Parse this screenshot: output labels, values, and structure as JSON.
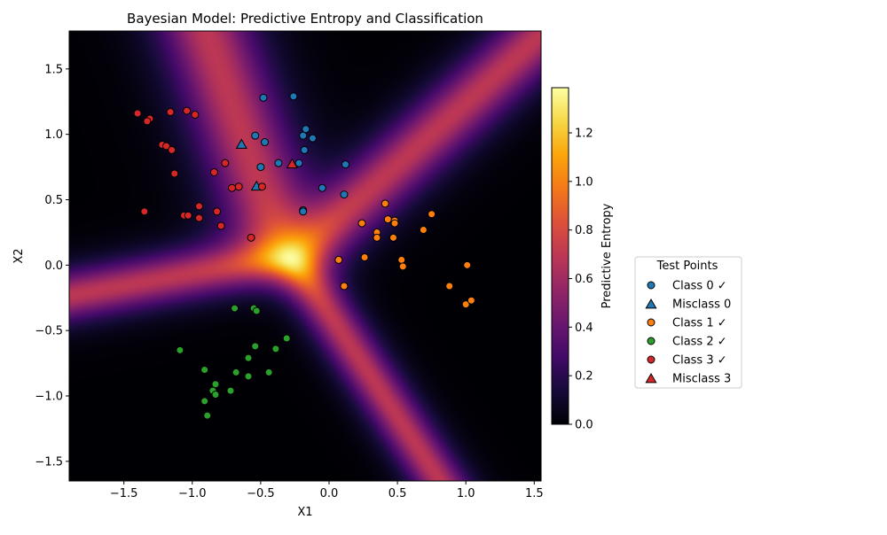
{
  "chart_data": {
    "type": "scatter",
    "title": "Bayesian Model: Predictive Entropy and Classification",
    "xlabel": "X1",
    "ylabel": "X2",
    "xlim": [
      -1.9,
      1.55
    ],
    "ylim": [
      -1.65,
      1.79
    ],
    "x_ticks": [
      -1.5,
      -1.0,
      -0.5,
      0.0,
      0.5,
      1.0,
      1.5
    ],
    "x_tick_labels": [
      "−1.5",
      "−1.0",
      "−0.5",
      "0.0",
      "0.5",
      "1.0",
      "1.5"
    ],
    "y_ticks": [
      -1.5,
      -1.0,
      -0.5,
      0.0,
      0.5,
      1.0,
      1.5
    ],
    "y_tick_labels": [
      "−1.5",
      "−1.0",
      "−0.5",
      "0.0",
      "0.5",
      "1.0",
      "1.5"
    ],
    "background": "predictive entropy heatmap (inferno colormap)",
    "colorbar": {
      "label": "Predictive Entropy",
      "range": [
        0.0,
        1.386
      ],
      "ticks": [
        0.0,
        0.2,
        0.4,
        0.6,
        0.8,
        1.0,
        1.2
      ],
      "tick_labels": [
        "0.0",
        "0.2",
        "0.4",
        "0.6",
        "0.8",
        "1.0",
        "1.2"
      ]
    },
    "legend": {
      "title": "Test Points",
      "placement": "right, outside plot"
    },
    "series": [
      {
        "name": "Class 0 ✓",
        "marker": "circle",
        "color": "#1f77b4",
        "points": [
          [
            -0.48,
            1.28
          ],
          [
            -0.26,
            1.29
          ],
          [
            -0.17,
            1.04
          ],
          [
            -0.19,
            0.99
          ],
          [
            -0.12,
            0.97
          ],
          [
            -0.54,
            0.99
          ],
          [
            -0.47,
            0.94
          ],
          [
            -0.18,
            0.88
          ],
          [
            -0.37,
            0.78
          ],
          [
            -0.22,
            0.78
          ],
          [
            -0.5,
            0.75
          ],
          [
            0.12,
            0.77
          ],
          [
            -0.05,
            0.59
          ],
          [
            0.11,
            0.54
          ],
          [
            -0.19,
            0.42
          ],
          [
            -0.19,
            0.41
          ]
        ]
      },
      {
        "name": "Misclass 0",
        "marker": "triangle",
        "color": "#1f77b4",
        "points": [
          [
            -0.64,
            0.92
          ],
          [
            -0.53,
            0.6
          ]
        ]
      },
      {
        "name": "Class 1 ✓",
        "marker": "circle",
        "color": "#ff7f0e",
        "points": [
          [
            0.41,
            0.47
          ],
          [
            0.75,
            0.39
          ],
          [
            0.43,
            0.35
          ],
          [
            0.48,
            0.34
          ],
          [
            0.24,
            0.32
          ],
          [
            0.48,
            0.32
          ],
          [
            0.69,
            0.27
          ],
          [
            0.35,
            0.25
          ],
          [
            0.35,
            0.21
          ],
          [
            0.47,
            0.21
          ],
          [
            0.26,
            0.06
          ],
          [
            0.07,
            0.04
          ],
          [
            0.53,
            0.04
          ],
          [
            0.54,
            -0.01
          ],
          [
            1.01,
            0.0
          ],
          [
            0.11,
            -0.16
          ],
          [
            0.88,
            -0.16
          ],
          [
            1.0,
            -0.3
          ],
          [
            1.04,
            -0.27
          ]
        ]
      },
      {
        "name": "Class 2 ✓",
        "marker": "circle",
        "color": "#2ca02c",
        "points": [
          [
            -0.69,
            -0.33
          ],
          [
            -0.55,
            -0.33
          ],
          [
            -0.53,
            -0.35
          ],
          [
            -0.31,
            -0.56
          ],
          [
            -0.54,
            -0.62
          ],
          [
            -0.39,
            -0.64
          ],
          [
            -1.09,
            -0.65
          ],
          [
            -0.59,
            -0.71
          ],
          [
            -0.91,
            -0.8
          ],
          [
            -0.68,
            -0.82
          ],
          [
            -0.44,
            -0.82
          ],
          [
            -0.59,
            -0.85
          ],
          [
            -0.83,
            -0.91
          ],
          [
            -0.72,
            -0.96
          ],
          [
            -0.85,
            -0.96
          ],
          [
            -0.83,
            -0.99
          ],
          [
            -0.91,
            -1.04
          ],
          [
            -0.89,
            -1.15
          ]
        ]
      },
      {
        "name": "Class 3 ✓",
        "marker": "circle",
        "color": "#d62728",
        "points": [
          [
            -1.4,
            1.16
          ],
          [
            -1.31,
            1.12
          ],
          [
            -1.33,
            1.1
          ],
          [
            -1.16,
            1.17
          ],
          [
            -1.04,
            1.18
          ],
          [
            -0.98,
            1.15
          ],
          [
            -1.22,
            0.92
          ],
          [
            -1.19,
            0.91
          ],
          [
            -1.15,
            0.88
          ],
          [
            -0.76,
            0.78
          ],
          [
            -0.84,
            0.71
          ],
          [
            -1.13,
            0.7
          ],
          [
            -0.66,
            0.6
          ],
          [
            -0.49,
            0.6
          ],
          [
            -0.71,
            0.59
          ],
          [
            -0.95,
            0.45
          ],
          [
            -1.35,
            0.41
          ],
          [
            -0.82,
            0.41
          ],
          [
            -1.06,
            0.38
          ],
          [
            -1.03,
            0.38
          ],
          [
            -0.95,
            0.36
          ],
          [
            -0.79,
            0.3
          ],
          [
            -0.57,
            0.21
          ]
        ]
      },
      {
        "name": "Misclass 3",
        "marker": "triangle",
        "color": "#d62728",
        "points": [
          [
            -0.27,
            0.77
          ]
        ]
      }
    ]
  }
}
